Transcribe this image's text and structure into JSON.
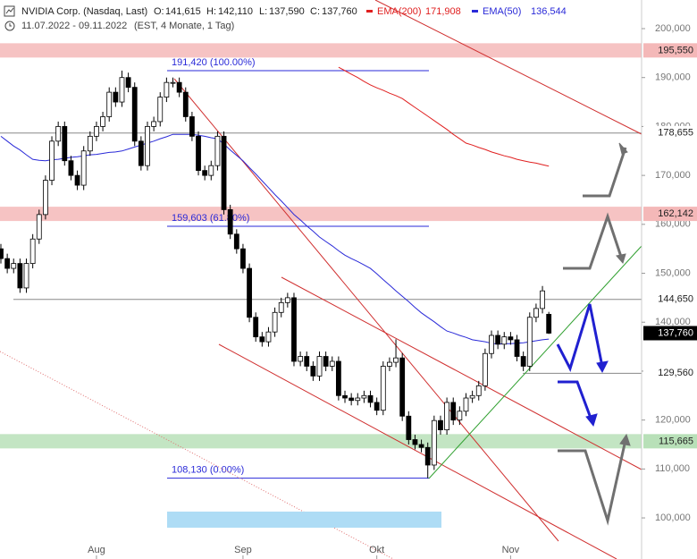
{
  "chart_data": {
    "type": "candlestick",
    "title": "NVIDIA Corp. (Nasdaq, Last)",
    "ohlc_header": [
      {
        "label": "O:",
        "value": "141,615"
      },
      {
        "label": "H:",
        "value": "142,110"
      },
      {
        "label": "L:",
        "value": "137,590"
      },
      {
        "label": "C:",
        "value": "137,760"
      }
    ],
    "subtitle": "11.07.2022 - 09.11.2022",
    "subtitle_note": "(EST, 4 Monate, 1 Tag)",
    "categories": [
      null,
      null,
      null,
      null,
      null,
      null,
      null,
      null,
      null,
      null,
      null,
      null,
      null,
      null,
      null,
      "Aug",
      null,
      null,
      null,
      null,
      null,
      null,
      null,
      null,
      null,
      null,
      null,
      null,
      null,
      null,
      null,
      null,
      null,
      null,
      null,
      null,
      null,
      null,
      "Sep",
      null,
      null,
      null,
      null,
      null,
      null,
      null,
      null,
      null,
      null,
      null,
      null,
      null,
      null,
      null,
      null,
      null,
      null,
      null,
      null,
      "Okt",
      null,
      null,
      null,
      null,
      null,
      null,
      null,
      null,
      null,
      null,
      null,
      null,
      null,
      null,
      null,
      null,
      null,
      null,
      null,
      null,
      "Nov",
      null,
      null,
      null,
      null,
      null,
      null
    ],
    "open": [
      155,
      153,
      151,
      152,
      147,
      152,
      157,
      162,
      169,
      177,
      180,
      173,
      170,
      168,
      175,
      178,
      180,
      182,
      187,
      185,
      190,
      188,
      177,
      172,
      180,
      181,
      186,
      189,
      189,
      187,
      182,
      178,
      171,
      170,
      172,
      178,
      163,
      158,
      155,
      151,
      141,
      137,
      136,
      138,
      142,
      144,
      145,
      132,
      133,
      131,
      129,
      133,
      131,
      132,
      125,
      124.5,
      124,
      124.5,
      125,
      123.6,
      122,
      131,
      131.8,
      132.7,
      120.8,
      116,
      115,
      114.4,
      110.8,
      119.9,
      118,
      123.6,
      120,
      121.8,
      124.5,
      125,
      127,
      133.6,
      137.3,
      135.5,
      137,
      136.4,
      133,
      131,
      141,
      142.8,
      141.615
    ],
    "high": [
      156,
      154,
      153,
      153,
      153,
      158,
      163,
      170,
      178,
      181,
      181,
      174,
      171,
      176,
      179,
      181,
      183,
      188,
      188,
      191.42,
      191,
      189,
      178,
      181,
      182,
      187,
      190,
      190,
      190,
      188,
      183,
      179,
      172,
      173,
      179,
      179,
      164,
      159,
      156,
      152,
      142,
      138,
      139,
      143,
      145,
      146,
      146,
      134,
      134,
      132,
      134,
      134,
      133,
      133,
      126,
      125.5,
      125.5,
      126,
      126,
      124.6,
      132,
      132.8,
      136.5,
      133.7,
      121.8,
      117,
      116,
      115.4,
      120.9,
      120.9,
      124.6,
      124.6,
      122.8,
      125.5,
      126,
      128,
      134.6,
      138.3,
      138.3,
      138,
      138,
      137.4,
      134,
      142,
      143.8,
      147.4,
      142.11
    ],
    "low": [
      152,
      150,
      150,
      146,
      146,
      151,
      156,
      161,
      168,
      176,
      172,
      169,
      167,
      167,
      174,
      177,
      179,
      181,
      184,
      184,
      187,
      176,
      171,
      171,
      179,
      180,
      185,
      188,
      186,
      181,
      177,
      170,
      169,
      169,
      171,
      162,
      157,
      154,
      150,
      140,
      136,
      135,
      135,
      137,
      141,
      143,
      131,
      131,
      130,
      128,
      128,
      130,
      130,
      124,
      123.5,
      123,
      123,
      123.5,
      122.6,
      121,
      121,
      130,
      130.8,
      119.8,
      115,
      114,
      113.4,
      108.13,
      109.8,
      117,
      117,
      119,
      119,
      120.8,
      123.5,
      124,
      126,
      132.6,
      134.5,
      134.5,
      135.4,
      132,
      130,
      130,
      140,
      141.8,
      137.59
    ],
    "close": [
      153,
      151,
      152,
      147,
      152,
      157,
      162,
      169,
      177,
      180,
      173,
      170,
      168,
      175,
      178,
      180,
      182,
      187,
      185,
      190,
      188,
      177,
      172,
      180,
      181,
      186,
      189,
      189,
      187,
      182,
      178,
      171,
      170,
      172,
      178,
      163,
      158,
      155,
      151,
      141,
      137,
      136,
      138,
      142,
      144,
      145,
      132,
      133,
      131,
      129,
      133,
      131,
      132,
      125,
      124.5,
      124,
      124.5,
      125,
      123.6,
      122,
      131,
      131.8,
      132.7,
      120.8,
      116,
      115,
      114.4,
      110.8,
      119.9,
      118,
      123.6,
      120,
      121.8,
      124.5,
      125,
      127,
      133.6,
      137.3,
      135.5,
      137,
      136.4,
      133,
      131,
      141,
      142.8,
      146.4,
      137.76
    ],
    "up_color": "#ffffff",
    "down_color": "#000000",
    "series": [
      {
        "name": "EMA(200)",
        "color": "#e02020",
        "last_label": "171,908",
        "values": [
          null,
          null,
          null,
          null,
          null,
          null,
          null,
          null,
          null,
          null,
          null,
          null,
          null,
          null,
          null,
          null,
          null,
          null,
          null,
          null,
          null,
          null,
          null,
          null,
          null,
          null,
          null,
          null,
          null,
          null,
          null,
          null,
          null,
          null,
          null,
          null,
          null,
          null,
          null,
          null,
          null,
          null,
          null,
          null,
          null,
          null,
          null,
          null,
          null,
          null,
          null,
          null,
          null,
          192.1,
          191.4,
          190.7,
          190,
          189.2,
          188.5,
          187.9,
          187.4,
          186.8,
          186.3,
          185.7,
          184.8,
          183.9,
          183,
          182.1,
          181.2,
          180.3,
          179.4,
          178.4,
          177.5,
          176.6,
          176.2,
          175.7,
          175.3,
          174.8,
          174.4,
          174,
          173.7,
          173.3,
          173,
          172.7,
          172.5,
          172.2,
          171.908
        ]
      },
      {
        "name": "EMA(50)",
        "color": "#2a2ad8",
        "last_label": "136,544",
        "values": [
          178,
          177,
          176,
          175.2,
          174.2,
          173.3,
          173.1,
          173,
          173.2,
          173.3,
          173.5,
          173.7,
          173.8,
          174,
          174.2,
          174.3,
          174.5,
          174.7,
          174.8,
          175,
          175.4,
          175.8,
          176.2,
          176.6,
          177,
          177.5,
          177.9,
          178.4,
          178.4,
          178.4,
          178.4,
          178.2,
          178,
          177.7,
          177.5,
          176.4,
          175.2,
          174.1,
          173,
          171.6,
          170.3,
          168.9,
          167.5,
          166.1,
          164.8,
          163.4,
          162,
          160.9,
          159.7,
          158.6,
          157.4,
          156.5,
          155.6,
          154.6,
          153.7,
          153,
          152.4,
          151.7,
          151,
          149.9,
          148.7,
          147.6,
          146.4,
          145.3,
          144.2,
          143,
          141.9,
          141,
          140.1,
          139.1,
          138.2,
          137.8,
          137.3,
          136.9,
          136.4,
          136.2,
          136,
          135.7,
          135.5,
          135.6,
          135.6,
          135.7,
          135.8,
          136,
          136.2,
          136.4,
          136.544
        ]
      }
    ],
    "ylim": [
      91.6,
      205.85
    ],
    "yticks": [
      {
        "value": 100,
        "label": "100,000"
      },
      {
        "value": 110,
        "label": "110,000"
      },
      {
        "value": 120,
        "label": "120,000"
      },
      {
        "value": 130,
        "label": "130,000"
      },
      {
        "value": 140,
        "label": "140,000"
      },
      {
        "value": 150,
        "label": "150,000"
      },
      {
        "value": 160,
        "label": "160,000"
      },
      {
        "value": 170,
        "label": "170,000"
      },
      {
        "value": 180,
        "label": "180,000"
      },
      {
        "value": 190,
        "label": "190,000"
      },
      {
        "value": 200,
        "label": "200,000"
      }
    ],
    "levels": [
      {
        "value": 195.55,
        "label": "195,550",
        "kind": "band",
        "color": "#f4b8b8"
      },
      {
        "value": 178.655,
        "label": "178,655",
        "kind": "line",
        "color": "#888888"
      },
      {
        "value": 162.142,
        "label": "162,142",
        "kind": "band",
        "color": "#f4b8b8"
      },
      {
        "value": 144.65,
        "label": "144,650",
        "kind": "line",
        "color": "#888888"
      },
      {
        "value": 129.56,
        "label": "129,560",
        "kind": "line",
        "color": "#888888"
      },
      {
        "value": 115.665,
        "label": "115,665",
        "kind": "band",
        "color": "#b8e0b8"
      }
    ],
    "last_price": {
      "value": 137.76,
      "label": "137,760"
    },
    "fib": [
      {
        "value": 191.42,
        "label": "191,420 (100.00%)"
      },
      {
        "value": 159.603,
        "label": "159,603 (61.80%)"
      },
      {
        "value": 108.13,
        "label": "108,130 (0.00%)"
      }
    ],
    "fib_color": "#2a2ad8"
  }
}
